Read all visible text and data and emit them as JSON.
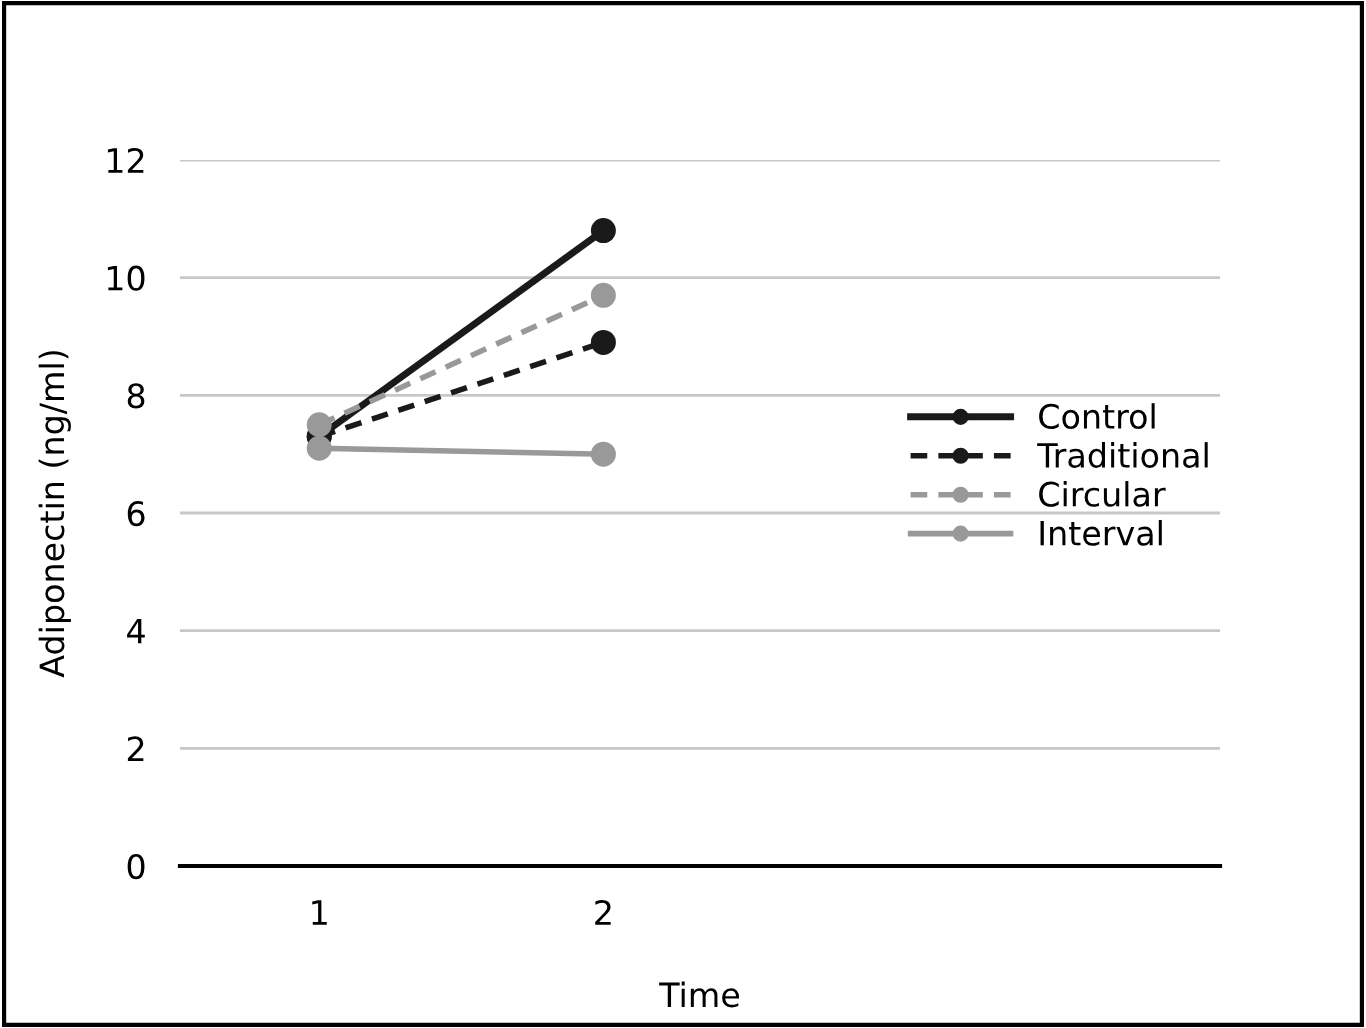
{
  "chart_data": {
    "type": "line",
    "xlabel": "Time",
    "ylabel": "Adiponectin (ng/ml)",
    "categories": [
      "1",
      "2"
    ],
    "series": [
      {
        "name": "Control",
        "color": "#1a1a1a",
        "line_style": "solid",
        "values": [
          7.3,
          10.8
        ]
      },
      {
        "name": "Traditional",
        "color": "#1a1a1a",
        "line_style": "dashed",
        "values": [
          7.3,
          8.9
        ]
      },
      {
        "name": "Circular",
        "color": "#999999",
        "line_style": "dashed",
        "values": [
          7.5,
          9.7
        ]
      },
      {
        "name": "Interval",
        "color": "#999999",
        "line_style": "solid",
        "values": [
          7.1,
          7.0
        ]
      }
    ],
    "ylim": [
      0,
      12
    ],
    "yticks": [
      0,
      2,
      4,
      6,
      8,
      10,
      12
    ],
    "grid": "y",
    "legend": "right",
    "marker": "circle"
  }
}
